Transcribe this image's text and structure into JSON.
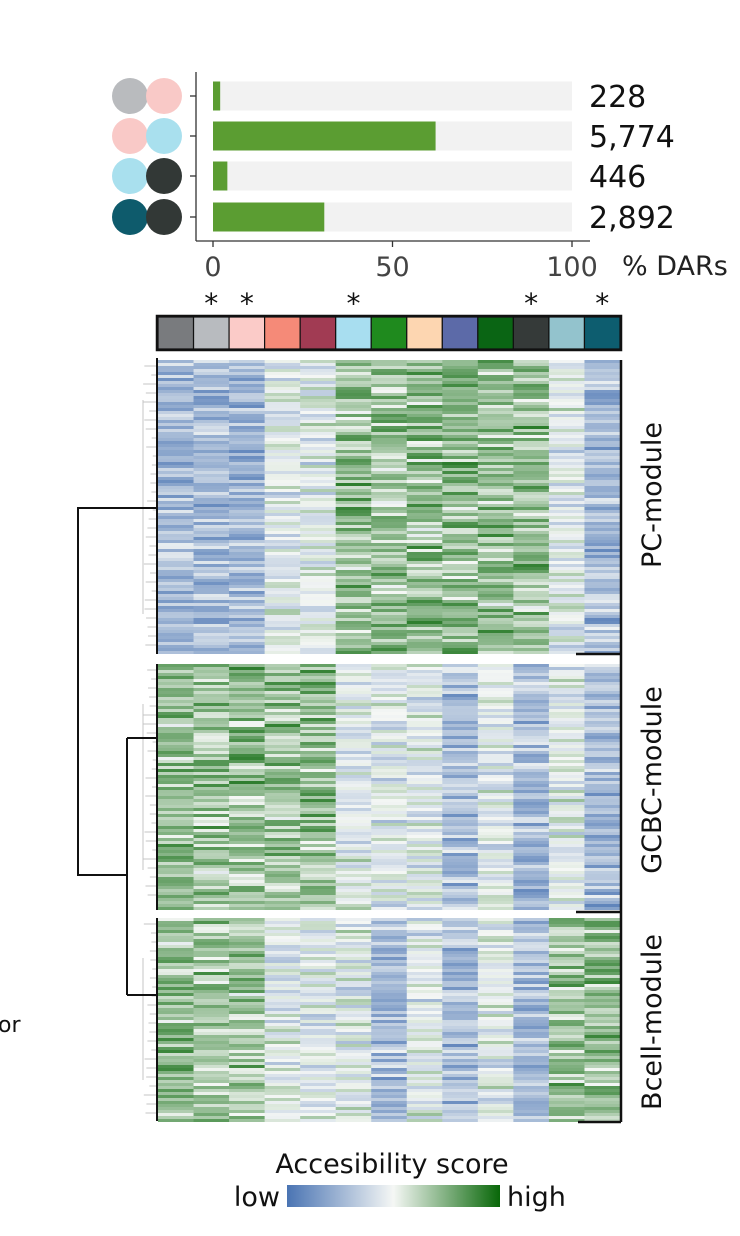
{
  "chart_data": [
    {
      "type": "bar",
      "orientation": "horizontal",
      "categories": [
        "228",
        "5,774",
        "446",
        "2,892"
      ],
      "count_labels": [
        "228",
        "5,774",
        "446",
        "2,892"
      ],
      "values": [
        2,
        62,
        4,
        31
      ],
      "xlim": [
        0,
        100
      ],
      "xticks": [
        "0",
        "50",
        "100"
      ],
      "xlabel": "% DARs",
      "bar_color": "#5b9d32",
      "track_color": "#f2f2f2",
      "comparison_pairs": [
        [
          "#b9bbbe",
          "#f9c9c7"
        ],
        [
          "#f9c9c7",
          "#a9e0ee"
        ],
        [
          "#a9e0ee",
          "#323836"
        ],
        [
          "#0e5b6c",
          "#323836"
        ]
      ]
    },
    {
      "type": "heatmap",
      "column_colors": [
        "#797b7e",
        "#b8bbbf",
        "#fbcbc8",
        "#f58a78",
        "#a13b53",
        "#a8def0",
        "#1f8a1e",
        "#fdd6b1",
        "#5c6aa8",
        "#0a6514",
        "#353a39",
        "#93c3cd",
        "#0d5d6f"
      ],
      "starred_columns": [
        1,
        2,
        5,
        10,
        12
      ],
      "star_label": "*",
      "modules": [
        {
          "label": "PC-module",
          "high_columns": [
            5,
            6,
            7,
            8,
            9,
            10
          ],
          "low_columns": [
            0,
            1,
            2,
            12
          ]
        },
        {
          "label": "GCBC-module",
          "high_columns": [
            0,
            1,
            2,
            3,
            4
          ],
          "low_columns": [
            8,
            10,
            12
          ]
        },
        {
          "label": "Bcell-module",
          "high_columns": [
            0,
            1,
            2,
            11,
            12
          ],
          "low_columns": [
            6,
            8,
            10
          ]
        }
      ],
      "colorbar": {
        "title": "Accesibility score",
        "low_label": "low",
        "high_label": "high",
        "colors": [
          "#4a74b3",
          "#f5f7f5",
          "#086708"
        ]
      },
      "edge_text": "or"
    }
  ]
}
